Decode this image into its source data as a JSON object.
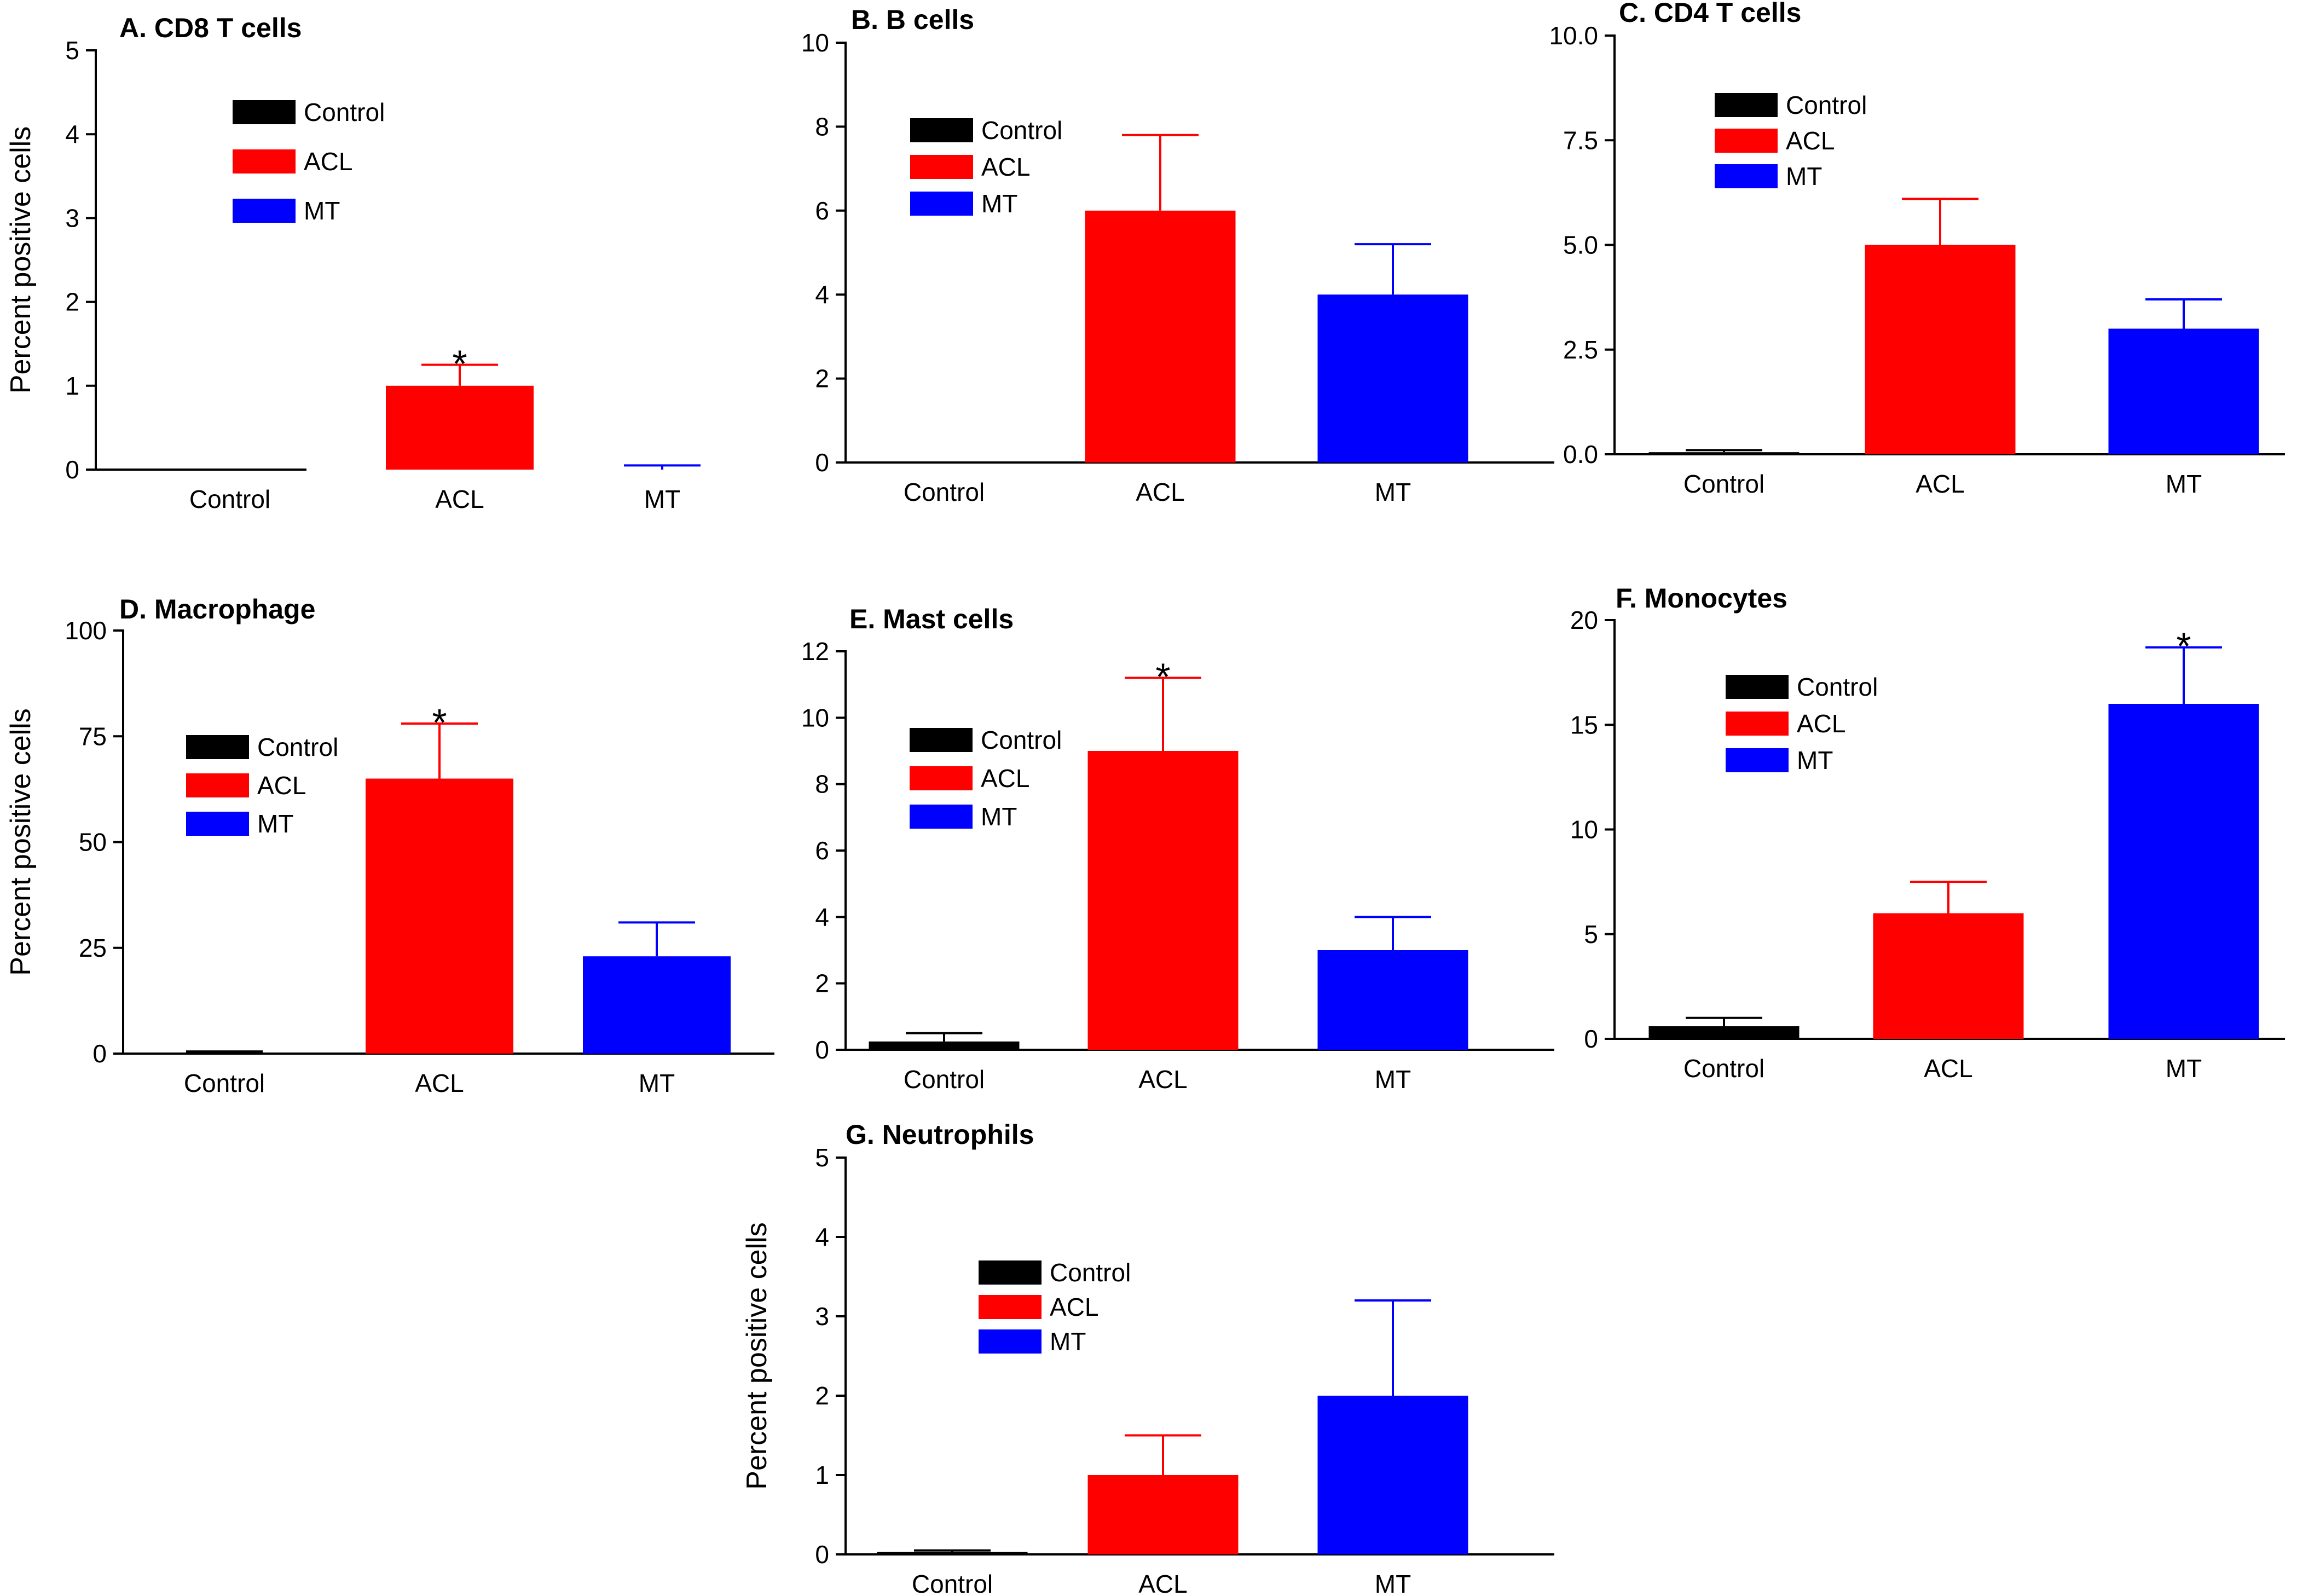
{
  "chart_data": [
    {
      "type": "bar",
      "id": "cd8",
      "title": "A. CD8 T cells",
      "ylabel": "Percent positive cells",
      "categories": [
        "Control",
        "ACL",
        "MT"
      ],
      "values": [
        0,
        1,
        0
      ],
      "errors": [
        0,
        0.25,
        0.05
      ],
      "significance": [
        "",
        "*",
        ""
      ],
      "ylim": [
        0,
        5
      ],
      "yticks": [
        "0",
        "1",
        "2",
        "3",
        "4",
        "5"
      ],
      "legend": [
        "Control",
        "ACL",
        "MT"
      ]
    },
    {
      "type": "bar",
      "id": "bcells",
      "title": "B. B cells",
      "ylabel": "",
      "categories": [
        "Control",
        "ACL",
        "MT"
      ],
      "values": [
        0,
        6,
        4
      ],
      "errors": [
        0,
        1.8,
        1.2
      ],
      "significance": [
        "",
        "",
        ""
      ],
      "ylim": [
        0,
        10
      ],
      "yticks": [
        "0",
        "2",
        "4",
        "6",
        "8",
        "10"
      ],
      "legend": [
        "Control",
        "ACL",
        "MT"
      ]
    },
    {
      "type": "bar",
      "id": "cd4",
      "title": "C. CD4 T cells",
      "ylabel": "",
      "categories": [
        "Control",
        "ACL",
        "MT"
      ],
      "values": [
        0.05,
        5,
        3
      ],
      "errors": [
        0.05,
        1.1,
        0.7
      ],
      "significance": [
        "",
        "",
        ""
      ],
      "ylim": [
        0,
        10
      ],
      "yticks": [
        "0.0",
        "2.5",
        "5.0",
        "7.5",
        "10.0"
      ],
      "legend": [
        "Control",
        "ACL",
        "MT"
      ]
    },
    {
      "type": "bar",
      "id": "macrophage",
      "title": "D. Macrophage",
      "ylabel": "Percent positive cells",
      "categories": [
        "Control",
        "ACL",
        "MT"
      ],
      "values": [
        0,
        65,
        23
      ],
      "errors": [
        0.5,
        13,
        8
      ],
      "significance": [
        "",
        "*",
        ""
      ],
      "ylim": [
        0,
        100
      ],
      "yticks": [
        "0",
        "25",
        "50",
        "75",
        "100"
      ],
      "legend": [
        "Control",
        "ACL",
        "MT"
      ]
    },
    {
      "type": "bar",
      "id": "mast",
      "title": "E. Mast cells",
      "ylabel": "",
      "categories": [
        "Control",
        "ACL",
        "MT"
      ],
      "values": [
        0.25,
        9,
        3
      ],
      "errors": [
        0.25,
        2.2,
        1
      ],
      "significance": [
        "",
        "*",
        ""
      ],
      "ylim": [
        0,
        12
      ],
      "yticks": [
        "0",
        "2",
        "4",
        "6",
        "8",
        "10",
        "12"
      ],
      "legend": [
        "Control",
        "ACL",
        "MT"
      ]
    },
    {
      "type": "bar",
      "id": "monocytes",
      "title": "F. Monocytes",
      "ylabel": "",
      "categories": [
        "Control",
        "ACL",
        "MT"
      ],
      "values": [
        0.6,
        6,
        16
      ],
      "errors": [
        0.4,
        1.5,
        2.7
      ],
      "significance": [
        "",
        "",
        "*"
      ],
      "ylim": [
        0,
        20
      ],
      "yticks": [
        "0",
        "5",
        "10",
        "15",
        "20"
      ],
      "legend": [
        "Control",
        "ACL",
        "MT"
      ]
    },
    {
      "type": "bar",
      "id": "neutrophils",
      "title": "G. Neutrophils",
      "ylabel": "Percent positive cells",
      "categories": [
        "Control",
        "ACL",
        "MT"
      ],
      "values": [
        0.03,
        1,
        2
      ],
      "errors": [
        0.02,
        0.5,
        1.2
      ],
      "significance": [
        "",
        "",
        ""
      ],
      "ylim": [
        0,
        5
      ],
      "yticks": [
        "0",
        "1",
        "2",
        "3",
        "4",
        "5"
      ],
      "legend": [
        "Control",
        "ACL",
        "MT"
      ]
    }
  ],
  "colors": {
    "Control": "#000000",
    "ACL": "#ff0000",
    "MT": "#0000ff",
    "axis": "#000000"
  }
}
